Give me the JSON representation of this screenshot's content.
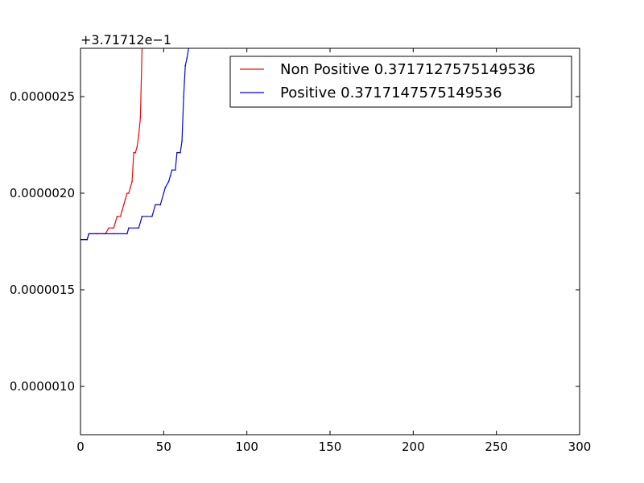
{
  "chart_data": {
    "type": "line",
    "offset_label": "+3.71712e−1",
    "xlim": [
      0,
      300
    ],
    "ylim": [
      7.5e-07,
      2.75e-06
    ],
    "x_ticks": [
      0,
      50,
      100,
      150,
      200,
      250,
      300
    ],
    "x_tick_labels": [
      "0",
      "50",
      "100",
      "150",
      "200",
      "250",
      "300"
    ],
    "y_ticks": [
      1e-06,
      1.5e-06,
      2e-06,
      2.5e-06
    ],
    "y_tick_labels": [
      "0.0000010",
      "0.0000015",
      "0.0000020",
      "0.0000025"
    ],
    "grid": false,
    "legend_position": "top-right",
    "series": [
      {
        "name": "Non Positive 0.3717127575149536",
        "color": "#ff0000",
        "x": [
          0,
          4,
          5,
          10,
          15,
          17,
          20,
          22,
          24,
          25,
          26,
          27,
          28,
          29,
          30,
          31,
          32,
          33,
          34,
          35,
          36,
          37
        ],
        "y": [
          1.76e-06,
          1.76e-06,
          1.79e-06,
          1.79e-06,
          1.79e-06,
          1.82e-06,
          1.82e-06,
          1.88e-06,
          1.88e-06,
          1.91e-06,
          1.94e-06,
          1.97e-06,
          2e-06,
          2e-06,
          2.03e-06,
          2.06e-06,
          2.21e-06,
          2.21e-06,
          2.24e-06,
          2.3e-06,
          2.39e-06,
          2.75e-06
        ]
      },
      {
        "name": "Positive 0.3717147575149536",
        "color": "#0000ff",
        "x": [
          0,
          4,
          5,
          10,
          20,
          28,
          29,
          35,
          37,
          43,
          45,
          48,
          50,
          51,
          53,
          54,
          55,
          57,
          58,
          60,
          61,
          62,
          63,
          64,
          65
        ],
        "y": [
          1.76e-06,
          1.76e-06,
          1.79e-06,
          1.79e-06,
          1.79e-06,
          1.79e-06,
          1.82e-06,
          1.82e-06,
          1.88e-06,
          1.88e-06,
          1.94e-06,
          1.94e-06,
          2e-06,
          2.03e-06,
          2.06e-06,
          2.09e-06,
          2.12e-06,
          2.12e-06,
          2.21e-06,
          2.21e-06,
          2.27e-06,
          2.5e-06,
          2.66e-06,
          2.7e-06,
          2.75e-06
        ]
      }
    ]
  }
}
